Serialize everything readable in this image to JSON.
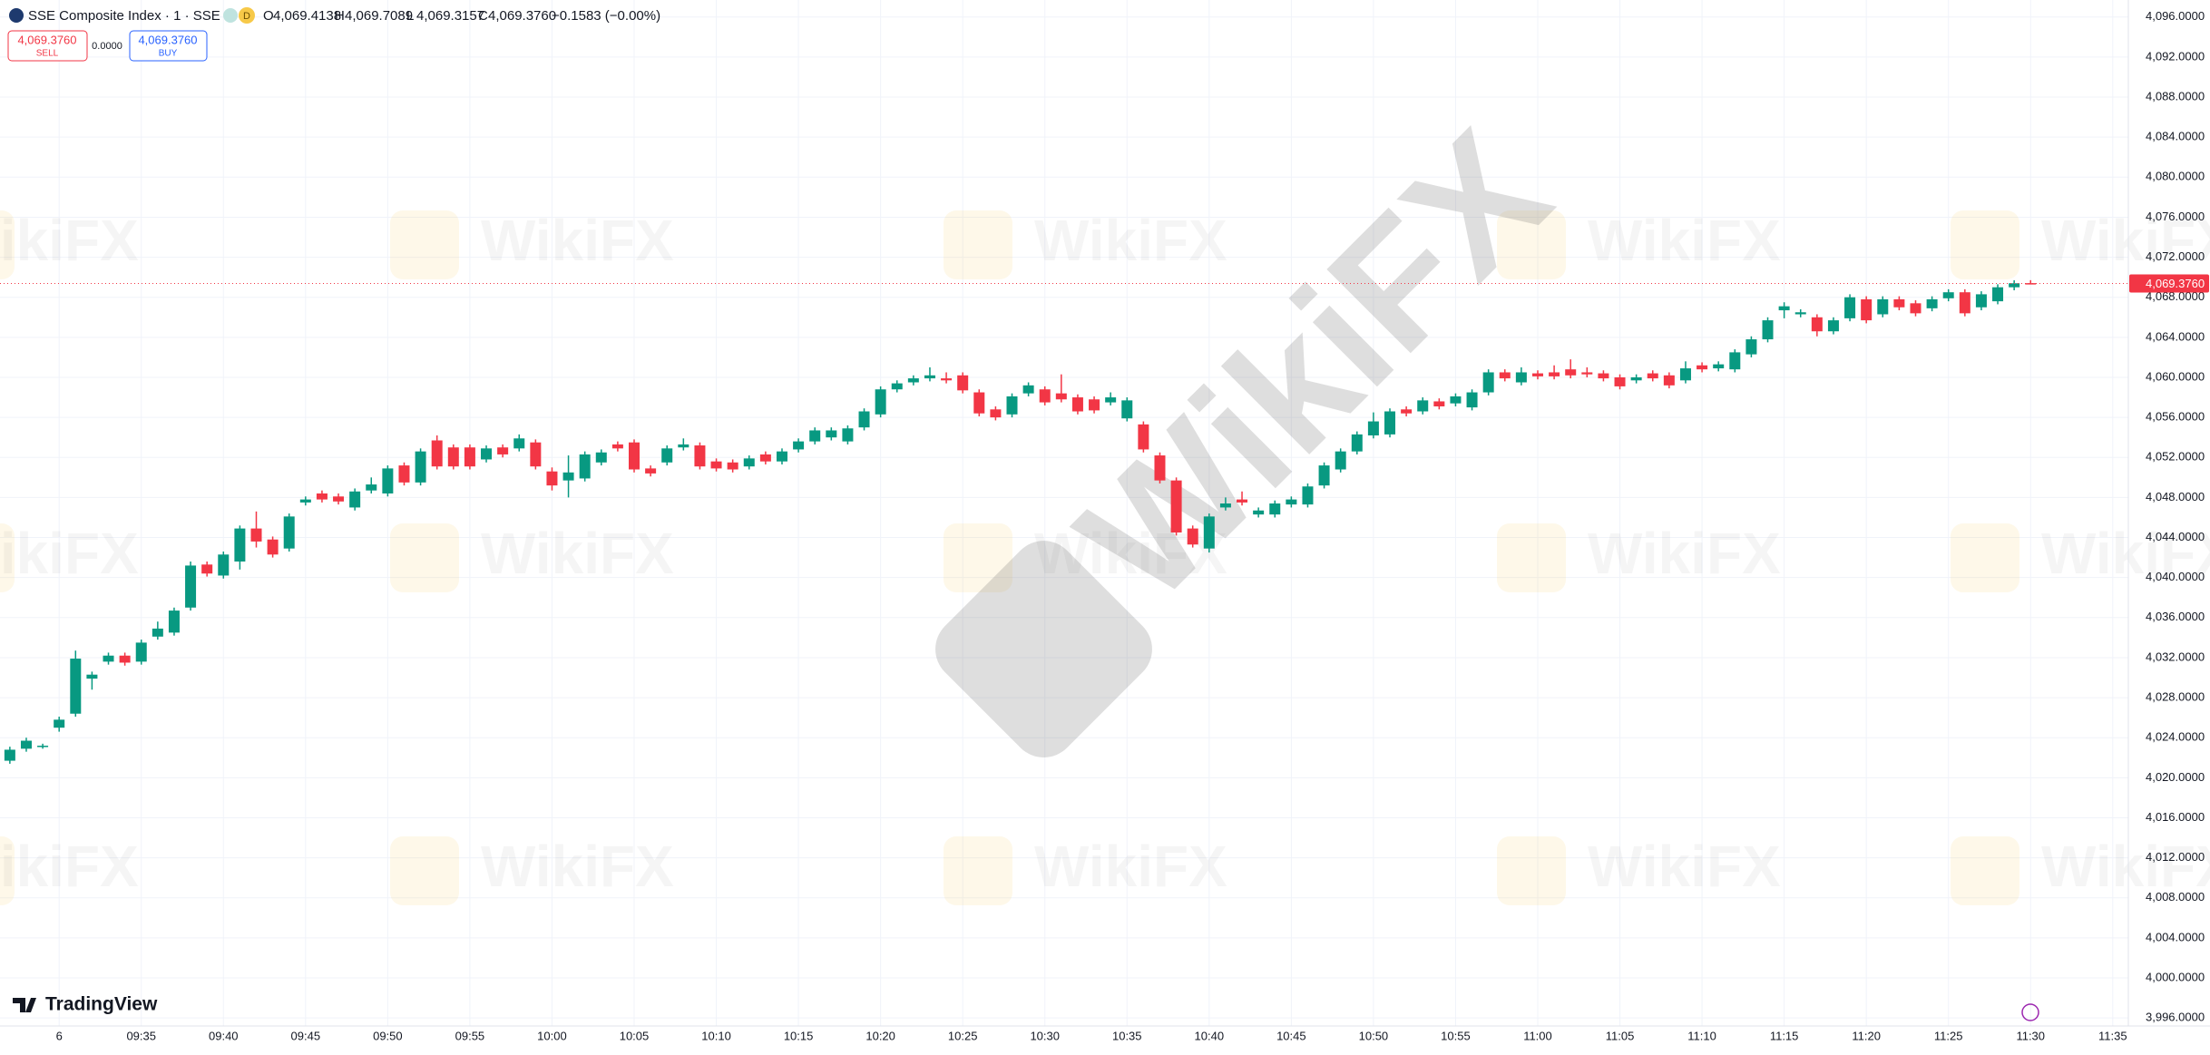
{
  "header": {
    "title": "SSE Composite Index · 1 · SSE",
    "badge": "D",
    "ohlc": [
      {
        "label": "O",
        "value": "4,069.4138"
      },
      {
        "label": "H",
        "value": "4,069.7089"
      },
      {
        "label": "L",
        "value": "4,069.3157"
      },
      {
        "label": "C",
        "value": "4,069.3760"
      }
    ],
    "change": "−0.1583 (−0.00%)"
  },
  "trade": {
    "sell_price": "4,069.3760",
    "sell": "SELL",
    "spread": "0.0000",
    "buy_price": "4,069.3760",
    "buy": "BUY"
  },
  "watermark": "WikiFX",
  "logo": "TradingView",
  "chart_data": {
    "type": "candlestick",
    "up_color": "#089981",
    "down_color": "#f23645",
    "grid": true,
    "open": [
      4021.7,
      4022.9,
      4023.1,
      4025.0,
      4026.4,
      4029.9,
      4031.6,
      4032.2,
      4031.6,
      4034.1,
      4034.5,
      4037.0,
      4041.3,
      4040.2,
      4041.6,
      4044.9,
      4043.8,
      4042.9,
      4047.5,
      4048.4,
      4048.1,
      4047.0,
      4048.7,
      4048.4,
      4051.2,
      4049.5,
      4053.7,
      4053.0,
      4053.0,
      4051.8,
      4053.0,
      4052.9,
      4053.5,
      4050.6,
      4049.7,
      4049.9,
      4051.5,
      4053.3,
      4053.5,
      4050.9,
      4051.5,
      4053.0,
      4053.2,
      4051.6,
      4051.5,
      4051.1,
      4052.3,
      4051.6,
      4052.8,
      4053.6,
      4054.0,
      4053.6,
      4055.0,
      4056.3,
      4058.8,
      4059.5,
      4059.9,
      4059.9,
      4060.2,
      4058.5,
      4056.8,
      4056.3,
      4058.4,
      4058.8,
      4058.4,
      4058.0,
      4057.8,
      4057.5,
      4055.9,
      4055.3,
      4052.2,
      4049.7,
      4044.9,
      4042.9,
      4047.0,
      4047.8,
      4046.3,
      4046.3,
      4047.3,
      4047.3,
      4049.2,
      4050.8,
      4052.6,
      4054.2,
      4054.3,
      4056.8,
      4056.6,
      4057.6,
      4057.4,
      4057.0,
      4058.5,
      4060.5,
      4059.5,
      4060.4,
      4060.5,
      4060.8,
      4060.5,
      4060.4,
      4060.0,
      4059.7,
      4060.4,
      4060.2,
      4059.7,
      4061.2,
      4060.9,
      4060.8,
      4062.3,
      4063.8,
      4066.7,
      4066.3,
      4066.0,
      4064.6,
      4065.9,
      4067.8,
      4066.3,
      4067.8,
      4067.4,
      4066.9,
      4067.9,
      4068.5,
      4067.0,
      4067.6,
      4069.0,
      4069.4138
    ],
    "high": [
      4023.1,
      4024.0,
      4023.4,
      4026.1,
      4032.7,
      4030.6,
      4032.5,
      4032.5,
      4033.8,
      4035.6,
      4037.0,
      4041.6,
      4041.6,
      4042.6,
      4045.2,
      4046.6,
      4044.1,
      4046.4,
      4048.1,
      4048.7,
      4048.4,
      4048.9,
      4050.0,
      4051.2,
      4051.5,
      4052.9,
      4054.2,
      4053.3,
      4053.3,
      4053.2,
      4053.3,
      4054.3,
      4053.8,
      4051.0,
      4052.2,
      4052.6,
      4052.8,
      4053.6,
      4053.8,
      4051.2,
      4053.2,
      4053.9,
      4053.5,
      4051.9,
      4051.8,
      4052.2,
      4052.6,
      4052.9,
      4053.9,
      4055.0,
      4055.0,
      4055.2,
      4056.9,
      4059.1,
      4059.7,
      4060.2,
      4061.0,
      4060.5,
      4060.5,
      4058.8,
      4057.1,
      4058.4,
      4059.5,
      4059.1,
      4060.3,
      4058.3,
      4058.1,
      4058.5,
      4058.0,
      4055.6,
      4052.5,
      4050.0,
      4045.2,
      4046.4,
      4048.0,
      4048.6,
      4047.0,
      4047.7,
      4048.1,
      4049.4,
      4051.5,
      4052.9,
      4054.6,
      4056.5,
      4056.9,
      4057.1,
      4058.0,
      4057.9,
      4058.4,
      4058.8,
      4060.8,
      4060.8,
      4061.0,
      4060.7,
      4061.2,
      4061.8,
      4061.0,
      4060.7,
      4060.3,
      4060.3,
      4060.7,
      4060.5,
      4061.6,
      4061.5,
      4061.6,
      4062.8,
      4064.1,
      4066.0,
      4067.5,
      4066.8,
      4066.3,
      4066.0,
      4068.3,
      4068.1,
      4068.1,
      4068.1,
      4067.7,
      4068.1,
      4068.8,
      4068.8,
      4068.6,
      4069.3,
      4069.7,
      4069.7089
    ],
    "low": [
      4021.4,
      4022.6,
      4022.9,
      4024.6,
      4026.1,
      4028.8,
      4031.3,
      4031.2,
      4031.3,
      4033.8,
      4034.2,
      4036.7,
      4040.1,
      4039.9,
      4040.8,
      4043.0,
      4042.0,
      4042.6,
      4047.2,
      4047.5,
      4047.3,
      4046.7,
      4048.4,
      4048.1,
      4049.2,
      4049.2,
      4050.8,
      4050.8,
      4050.8,
      4051.5,
      4052.0,
      4052.6,
      4050.8,
      4048.7,
      4048.0,
      4049.6,
      4051.2,
      4052.6,
      4050.5,
      4050.1,
      4051.2,
      4052.7,
      4050.8,
      4050.6,
      4050.5,
      4050.8,
      4051.3,
      4051.3,
      4052.5,
      4053.3,
      4053.7,
      4053.3,
      4054.7,
      4056.0,
      4058.5,
      4059.2,
      4059.6,
      4059.4,
      4058.4,
      4056.1,
      4055.7,
      4056.0,
      4058.1,
      4057.2,
      4057.5,
      4056.3,
      4056.4,
      4057.2,
      4055.6,
      4052.5,
      4049.4,
      4044.2,
      4043.0,
      4042.5,
      4046.7,
      4047.2,
      4046.0,
      4046.0,
      4047.0,
      4047.0,
      4048.9,
      4050.5,
      4052.3,
      4053.9,
      4054.0,
      4056.1,
      4056.3,
      4056.8,
      4057.1,
      4056.7,
      4058.2,
      4059.6,
      4059.2,
      4059.8,
      4059.8,
      4059.9,
      4060.0,
      4059.6,
      4058.8,
      4059.4,
      4059.6,
      4058.9,
      4059.4,
      4060.5,
      4060.6,
      4060.5,
      4062.0,
      4063.5,
      4065.9,
      4066.0,
      4064.1,
      4064.3,
      4065.6,
      4065.4,
      4066.0,
      4066.7,
      4066.1,
      4066.6,
      4067.6,
      4066.1,
      4066.7,
      4067.3,
      4068.7,
      4069.3157
    ],
    "close": [
      4022.8,
      4023.7,
      4023.2,
      4025.8,
      4031.9,
      4030.3,
      4032.2,
      4031.5,
      4033.5,
      4034.9,
      4036.7,
      4041.2,
      4040.4,
      4042.3,
      4044.9,
      4043.6,
      4042.3,
      4046.1,
      4047.8,
      4047.8,
      4047.6,
      4048.6,
      4049.3,
      4050.9,
      4049.5,
      4052.6,
      4051.1,
      4051.1,
      4051.1,
      4052.9,
      4052.3,
      4053.9,
      4051.1,
      4049.2,
      4050.5,
      4052.3,
      4052.5,
      4052.9,
      4050.8,
      4050.4,
      4052.9,
      4053.3,
      4051.1,
      4050.9,
      4050.8,
      4051.9,
      4051.6,
      4052.6,
      4053.6,
      4054.7,
      4054.7,
      4054.9,
      4056.6,
      4058.8,
      4059.4,
      4059.9,
      4060.2,
      4059.7,
      4058.7,
      4056.4,
      4056.0,
      4058.1,
      4059.2,
      4057.5,
      4057.8,
      4056.6,
      4056.7,
      4058.0,
      4057.7,
      4052.8,
      4049.7,
      4044.5,
      4043.3,
      4046.1,
      4047.4,
      4047.5,
      4046.7,
      4047.4,
      4047.8,
      4049.1,
      4051.2,
      4052.6,
      4054.3,
      4055.6,
      4056.6,
      4056.4,
      4057.7,
      4057.1,
      4058.1,
      4058.5,
      4060.5,
      4059.9,
      4060.5,
      4060.1,
      4060.1,
      4060.2,
      4060.3,
      4059.9,
      4059.1,
      4060.0,
      4059.9,
      4059.2,
      4060.9,
      4060.8,
      4061.3,
      4062.5,
      4063.8,
      4065.7,
      4067.1,
      4066.5,
      4064.6,
      4065.7,
      4068.0,
      4065.7,
      4067.8,
      4067.0,
      4066.4,
      4067.8,
      4068.5,
      4066.4,
      4068.3,
      4069.0,
      4069.4,
      4069.376
    ],
    "xlim": [
      -0.6,
      128.95
    ],
    "xticks": [
      {
        "value": 3,
        "label": "6"
      },
      {
        "value": 8,
        "label": "09:35"
      },
      {
        "value": 13,
        "label": "09:40"
      },
      {
        "value": 18,
        "label": "09:45"
      },
      {
        "value": 23,
        "label": "09:50"
      },
      {
        "value": 28,
        "label": "09:55"
      },
      {
        "value": 33,
        "label": "10:00"
      },
      {
        "value": 38,
        "label": "10:05"
      },
      {
        "value": 43,
        "label": "10:10"
      },
      {
        "value": 48,
        "label": "10:15"
      },
      {
        "value": 53,
        "label": "10:20"
      },
      {
        "value": 58,
        "label": "10:25"
      },
      {
        "value": 63,
        "label": "10:30"
      },
      {
        "value": 68,
        "label": "10:35"
      },
      {
        "value": 73,
        "label": "10:40"
      },
      {
        "value": 78,
        "label": "10:45"
      },
      {
        "value": 83,
        "label": "10:50"
      },
      {
        "value": 88,
        "label": "10:55"
      },
      {
        "value": 93,
        "label": "11:00"
      },
      {
        "value": 98,
        "label": "11:05"
      },
      {
        "value": 103,
        "label": "11:10"
      },
      {
        "value": 108,
        "label": "11:15"
      },
      {
        "value": 113,
        "label": "11:20"
      },
      {
        "value": 118,
        "label": "11:25"
      },
      {
        "value": 123,
        "label": "11:30"
      },
      {
        "value": 128,
        "label": "11:35"
      }
    ],
    "ylim": [
      3995.2,
      4097.7
    ],
    "yticks": [
      {
        "value": 3996,
        "label": "3,996.0000"
      },
      {
        "value": 4000,
        "label": "4,000.0000"
      },
      {
        "value": 4004,
        "label": "4,004.0000"
      },
      {
        "value": 4008,
        "label": "4,008.0000"
      },
      {
        "value": 4012,
        "label": "4,012.0000"
      },
      {
        "value": 4016,
        "label": "4,016.0000"
      },
      {
        "value": 4020,
        "label": "4,020.0000"
      },
      {
        "value": 4024,
        "label": "4,024.0000"
      },
      {
        "value": 4028,
        "label": "4,028.0000"
      },
      {
        "value": 4032,
        "label": "4,032.0000"
      },
      {
        "value": 4036,
        "label": "4,036.0000"
      },
      {
        "value": 4040,
        "label": "4,040.0000"
      },
      {
        "value": 4044,
        "label": "4,044.0000"
      },
      {
        "value": 4048,
        "label": "4,048.0000"
      },
      {
        "value": 4052,
        "label": "4,052.0000"
      },
      {
        "value": 4056,
        "label": "4,056.0000"
      },
      {
        "value": 4060,
        "label": "4,060.0000"
      },
      {
        "value": 4064,
        "label": "4,064.0000"
      },
      {
        "value": 4068,
        "label": "4,068.0000"
      },
      {
        "value": 4072,
        "label": "4,072.0000"
      },
      {
        "value": 4076,
        "label": "4,076.0000"
      },
      {
        "value": 4080,
        "label": "4,080.0000"
      },
      {
        "value": 4084,
        "label": "4,084.0000"
      },
      {
        "value": 4088,
        "label": "4,088.0000"
      },
      {
        "value": 4092,
        "label": "4,092.0000"
      },
      {
        "value": 4096,
        "label": "4,096.0000"
      }
    ],
    "last_price": {
      "value": 4069.376,
      "label": "4,069.3760"
    }
  }
}
